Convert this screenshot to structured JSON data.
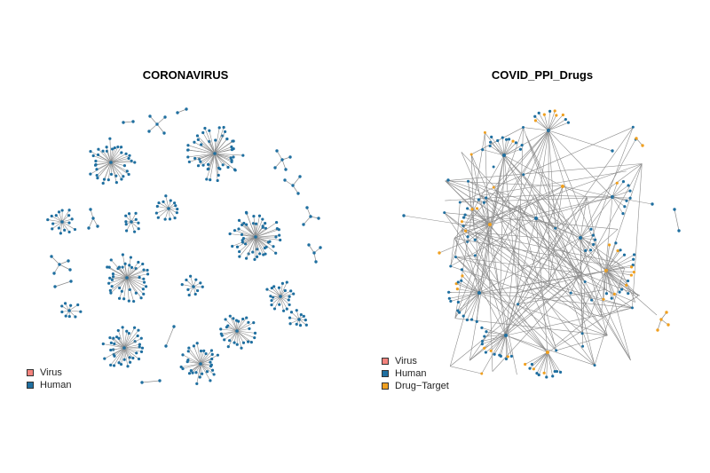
{
  "panels": [
    {
      "title": "CORONAVIRUS"
    },
    {
      "title": "COVID_PPI_Drugs"
    }
  ],
  "legend_left": [
    {
      "label": "Virus",
      "color": "#f4837d"
    },
    {
      "label": "Human",
      "color": "#1f6fa0"
    }
  ],
  "legend_right": [
    {
      "label": "Virus",
      "color": "#f4837d"
    },
    {
      "label": "Human",
      "color": "#1f6fa0"
    },
    {
      "label": "Drug−Target",
      "color": "#f0a020"
    }
  ],
  "colors": {
    "human_node": "#1f6fa0",
    "drug_node": "#f0a020",
    "edge": "#8c8c8c"
  }
}
